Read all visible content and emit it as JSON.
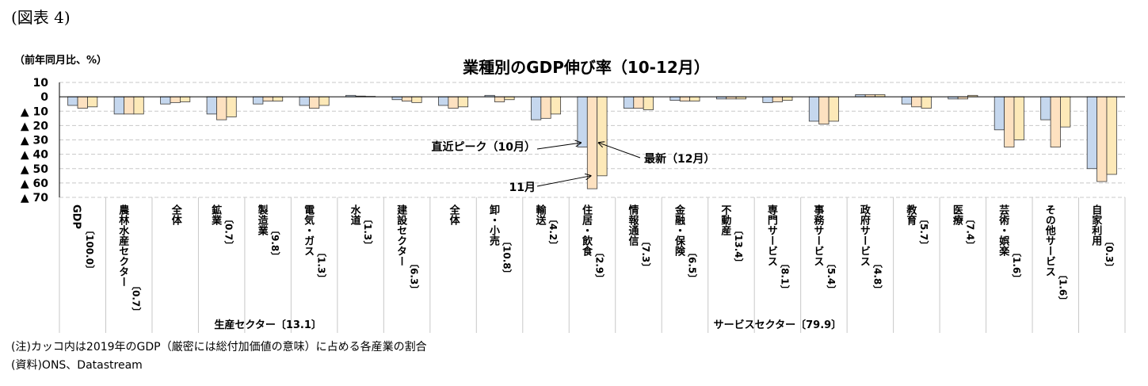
{
  "figure_label": "(図表 4)",
  "chart_data": {
    "type": "bar",
    "title": "業種別のGDP伸び率（10-12月）",
    "ylabel": "（前年同月比、%）",
    "ylim": [
      -70,
      10
    ],
    "y_ticks": [
      10,
      0,
      -10,
      -20,
      -30,
      -40,
      -50,
      -60,
      -70
    ],
    "y_tick_labels": [
      "10",
      "0",
      "▲ 10",
      "▲ 20",
      "▲ 30",
      "▲ 40",
      "▲ 50",
      "▲ 60",
      "▲ 70"
    ],
    "grid": true,
    "colors": [
      "#c5d7ee",
      "#fde1c0",
      "#fde9b8"
    ],
    "categories": [
      {
        "name": "GDP",
        "share": "〔100.0〕"
      },
      {
        "name": "農林水産セクター",
        "share": "〔0.7〕"
      },
      {
        "name": "全体",
        "share": ""
      },
      {
        "name": "鉱業",
        "share": "〔0.7〕"
      },
      {
        "name": "製造業",
        "share": "〔9.8〕"
      },
      {
        "name": "電気・ガス",
        "share": "〔1.3〕"
      },
      {
        "name": "水道",
        "share": "〔1.3〕"
      },
      {
        "name": "建設セクター",
        "share": "〔6.3〕"
      },
      {
        "name": "全体",
        "share": ""
      },
      {
        "name": "卸・小売",
        "share": "〔10.8〕"
      },
      {
        "name": "輸送",
        "share": "〔4.2〕"
      },
      {
        "name": "住居・飲食",
        "share": "〔2.9〕"
      },
      {
        "name": "情報通信",
        "share": "〔7.3〕"
      },
      {
        "name": "金融・保険",
        "share": "〔6.5〕"
      },
      {
        "name": "不動産",
        "share": "〔13.4〕"
      },
      {
        "name": "専門サービス",
        "share": "〔8.1〕"
      },
      {
        "name": "事務サービス",
        "share": "〔5.4〕"
      },
      {
        "name": "政府サービス",
        "share": "〔4.8〕"
      },
      {
        "name": "教育",
        "share": "〔5.7〕"
      },
      {
        "name": "医療",
        "share": "〔7.4〕"
      },
      {
        "name": "芸術・娯楽",
        "share": "〔1.6〕"
      },
      {
        "name": "その他サービス",
        "share": "〔1.6〕"
      },
      {
        "name": "自家利用",
        "share": "〔0.3〕"
      }
    ],
    "series": [
      {
        "values": [
          -6,
          -12,
          -5,
          -12,
          -5,
          -6,
          1,
          -2,
          -6,
          1,
          -16,
          -35,
          -8,
          -2.5,
          -1.5,
          -4,
          -17,
          1.5,
          -5,
          -1.5,
          -23,
          -16,
          -50
        ]
      },
      {
        "values": [
          -8,
          -12,
          -4,
          -16,
          -3,
          -8,
          0.5,
          -3,
          -8,
          -3.5,
          -15,
          -64,
          -8,
          -3,
          -1.5,
          -3.5,
          -19,
          1.5,
          -7,
          -1.5,
          -35,
          -35,
          -59
        ]
      },
      {
        "values": [
          -7,
          -12,
          -3.5,
          -14,
          -3,
          -6,
          0.3,
          -4,
          -7,
          -2,
          -12,
          -55,
          -9,
          -3,
          -1.5,
          -2.5,
          -17,
          1.5,
          -8,
          1,
          -30,
          -21,
          -54
        ]
      }
    ],
    "groups": [
      {
        "label": "生産セクター〔13.1〕",
        "from": 2,
        "to": 6
      },
      {
        "label": "サービスセクター〔79.9〕",
        "from": 8,
        "to": 22
      }
    ],
    "annotations": [
      {
        "text": "直近ピーク（10月）",
        "category": 11,
        "series": 0
      },
      {
        "text": "11月",
        "category": 11,
        "series": 1
      },
      {
        "text": "最新（12月）",
        "category": 11,
        "series": 2
      }
    ]
  },
  "notes": {
    "note": "(注)カッコ内は2019年のGDP（厳密には総付加価値の意味）に占める各産業の割合",
    "source": "(資料)ONS、Datastream"
  }
}
